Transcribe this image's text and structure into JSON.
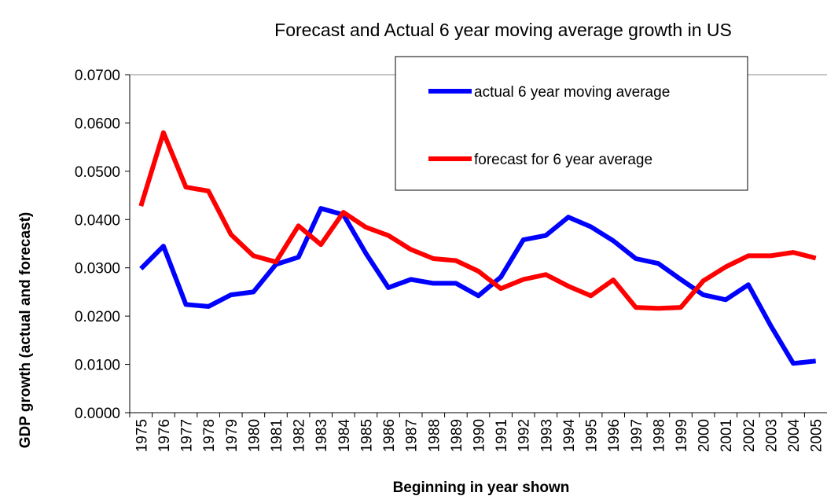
{
  "chart_data": {
    "type": "line",
    "title": "Forecast and Actual 6 year moving average growth in US",
    "x_label": "Beginning in year shown",
    "y_label": "GDP growth (actual and forecast)",
    "categories": [
      "1975",
      "1976",
      "1977",
      "1978",
      "1979",
      "1980",
      "1981",
      "1982",
      "1983",
      "1984",
      "1985",
      "1986",
      "1987",
      "1988",
      "1989",
      "1990",
      "1991",
      "1992",
      "1993",
      "1994",
      "1995",
      "1996",
      "1997",
      "1998",
      "1999",
      "2000",
      "2001",
      "2002",
      "2003",
      "2004",
      "2005"
    ],
    "series": [
      {
        "name": "actual 6 year moving average",
        "color": "#0000ff",
        "values": [
          0.0298,
          0.0345,
          0.0224,
          0.022,
          0.0244,
          0.025,
          0.0307,
          0.0322,
          0.0423,
          0.041,
          0.033,
          0.0259,
          0.0276,
          0.0268,
          0.0268,
          0.0242,
          0.0281,
          0.0358,
          0.0367,
          0.0405,
          0.0385,
          0.0356,
          0.0319,
          0.0309,
          0.0276,
          0.0244,
          0.0234,
          0.0265,
          0.018,
          0.0102,
          0.0107
        ]
      },
      {
        "name": "forecast for 6 year average",
        "color": "#ff0000",
        "values": [
          0.0428,
          0.058,
          0.0467,
          0.0459,
          0.0369,
          0.0325,
          0.0312,
          0.0387,
          0.0348,
          0.0415,
          0.0384,
          0.0367,
          0.0338,
          0.0319,
          0.0315,
          0.0293,
          0.0257,
          0.0276,
          0.0286,
          0.0262,
          0.0242,
          0.0275,
          0.0218,
          0.0216,
          0.0218,
          0.0273,
          0.0302,
          0.0325,
          0.0325,
          0.0332,
          0.032
        ]
      }
    ],
    "ylim": [
      0,
      0.07
    ],
    "yticks": [
      {
        "value": 0,
        "label": "0.0000"
      },
      {
        "value": 0.01,
        "label": "0.0100"
      },
      {
        "value": 0.02,
        "label": "0.0200"
      },
      {
        "value": 0.03,
        "label": "0.0300"
      },
      {
        "value": 0.04,
        "label": "0.0400"
      },
      {
        "value": 0.05,
        "label": "0.0500"
      },
      {
        "value": 0.06,
        "label": "0.0600"
      },
      {
        "value": 0.07,
        "label": "0.0700"
      }
    ],
    "grid": false,
    "legend": "top-right"
  }
}
